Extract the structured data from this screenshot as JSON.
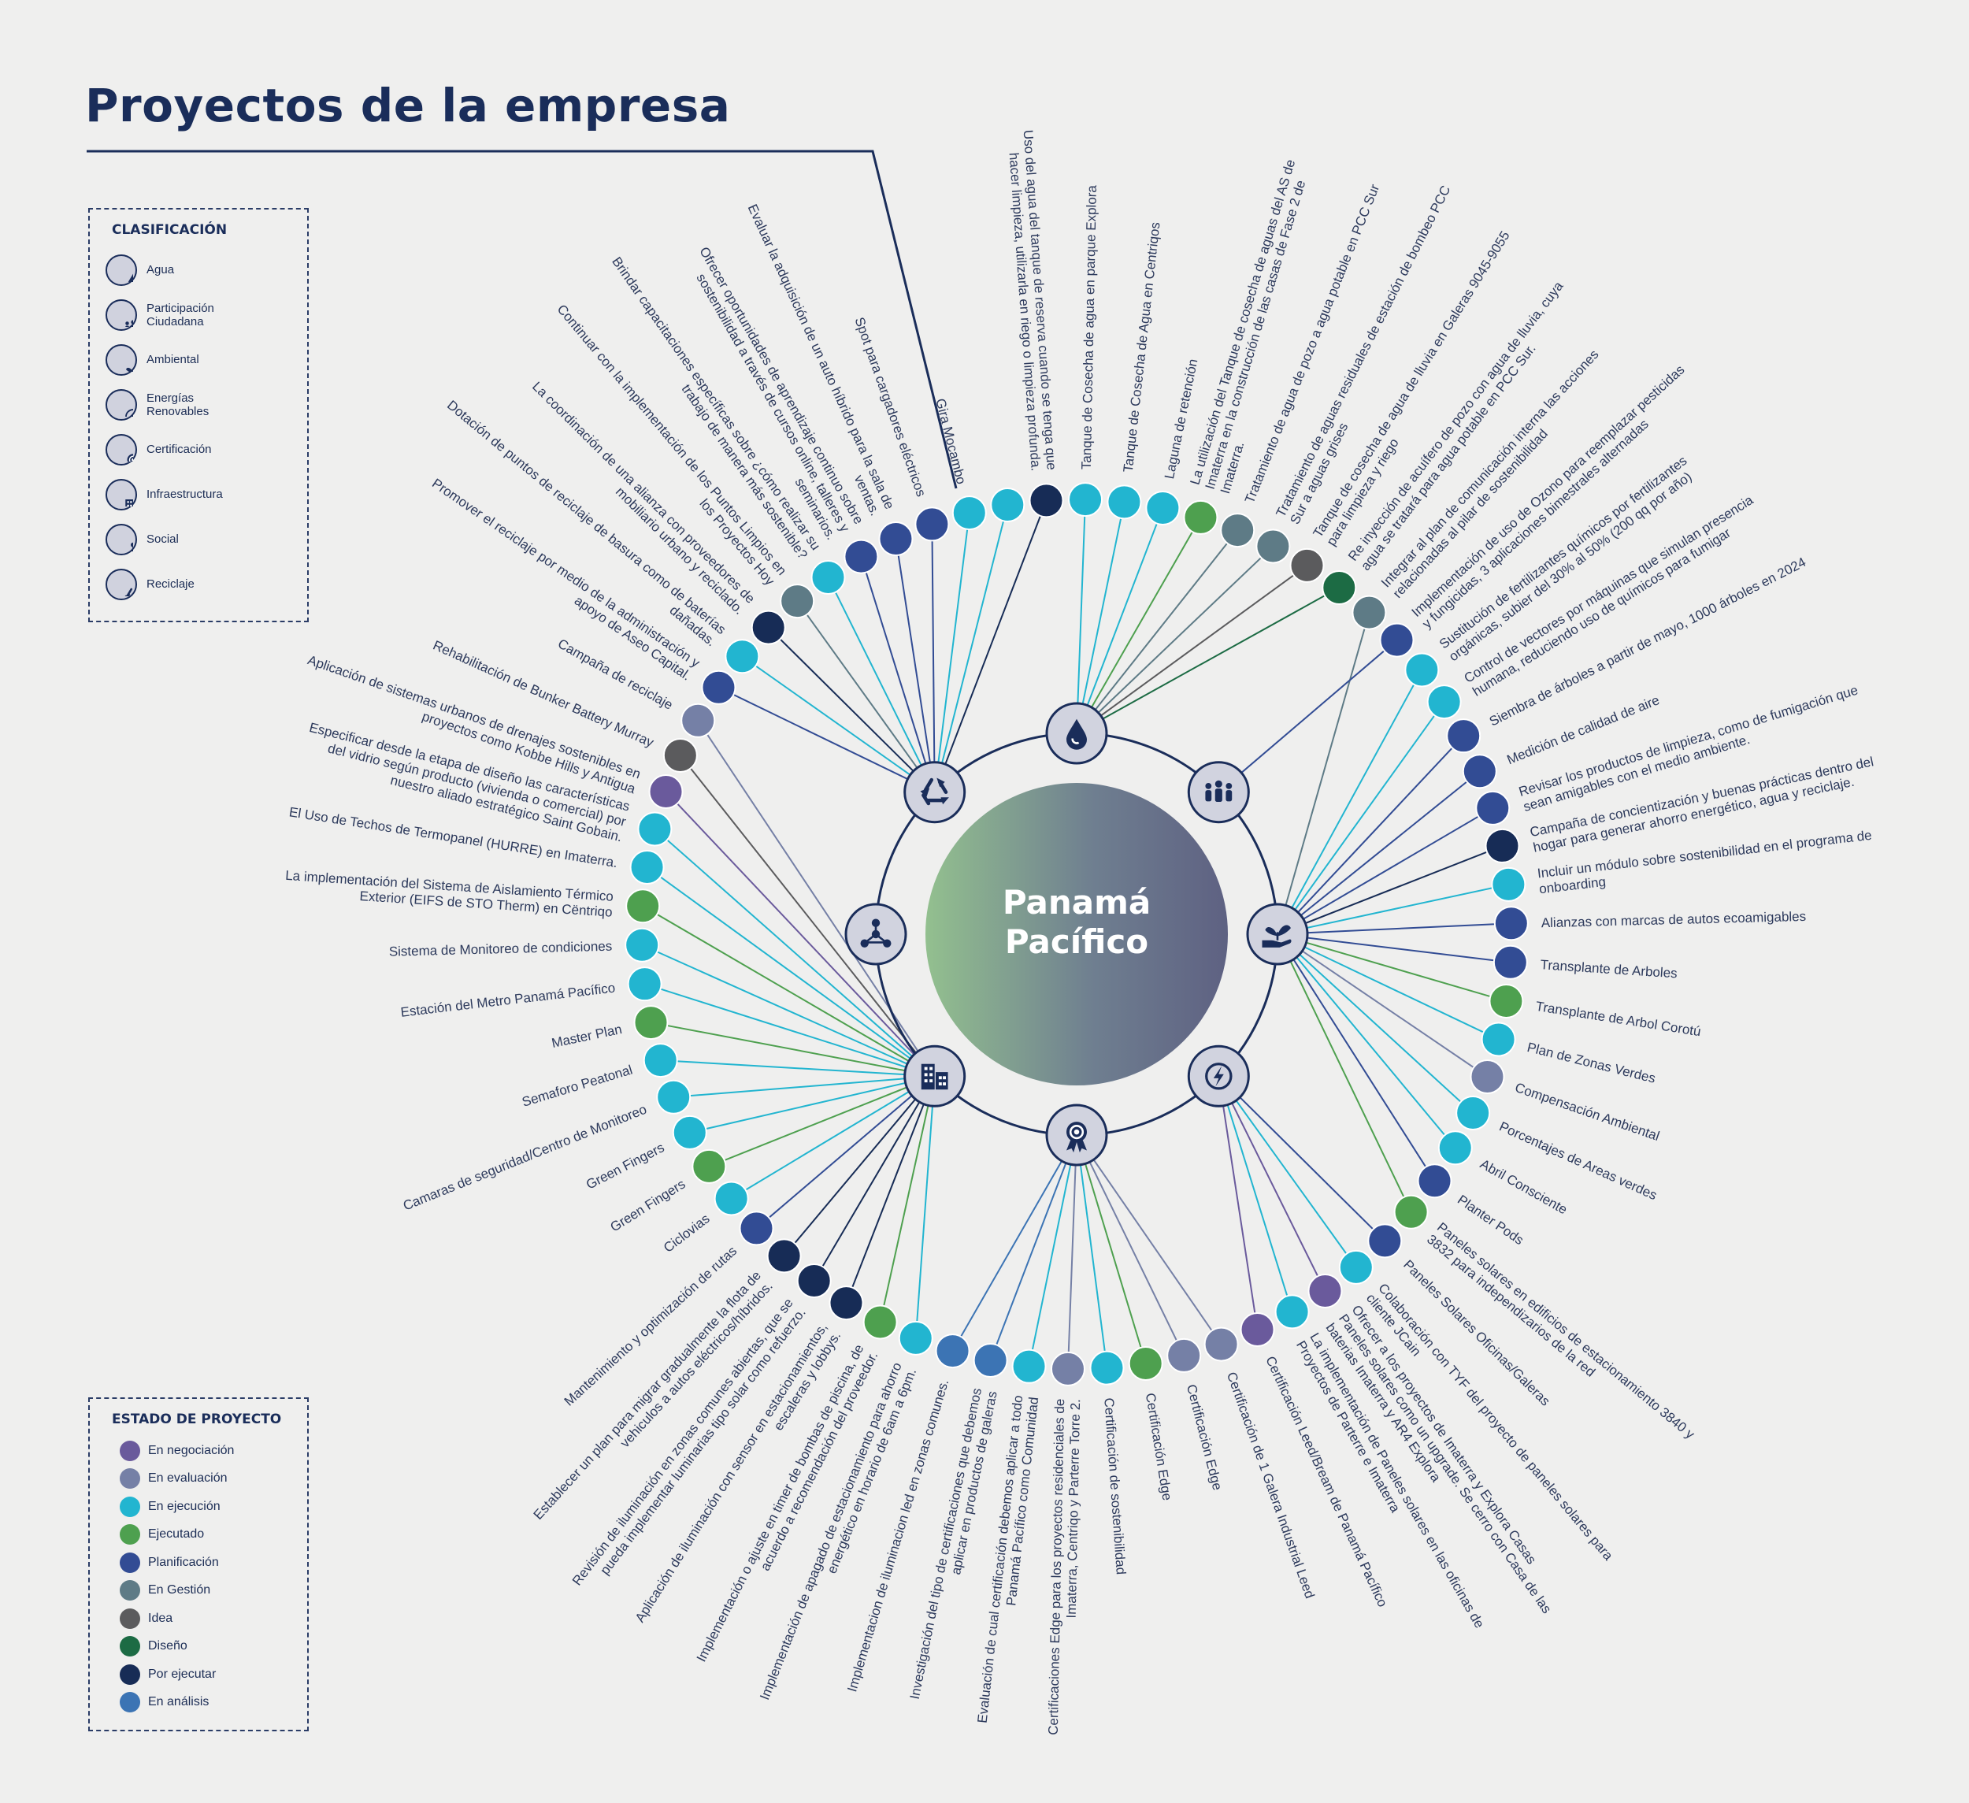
{
  "title": "Proyectos de la empresa",
  "center": {
    "line1": "Panamá",
    "line2": "Pacífico"
  },
  "classification": {
    "heading": "CLASIFICACIÓN",
    "items": [
      {
        "label": "Agua",
        "icon": "water-drop-icon"
      },
      {
        "label": "Participación\nCiudadana",
        "icon": "people-group-icon"
      },
      {
        "label": "Ambiental",
        "icon": "hand-plant-icon"
      },
      {
        "label": "Energías\nRenovables",
        "icon": "lightning-icon"
      },
      {
        "label": "Certificación",
        "icon": "award-badge-icon"
      },
      {
        "label": "Infraestructura",
        "icon": "building-icon"
      },
      {
        "label": "Social",
        "icon": "network-icon"
      },
      {
        "label": "Reciclaje",
        "icon": "recycle-icon"
      }
    ]
  },
  "status": {
    "heading": "ESTADO DE PROYECTO",
    "items": [
      {
        "label": "En negociación",
        "color": "#6a5a9c"
      },
      {
        "label": "En evaluación",
        "color": "#7580a6"
      },
      {
        "label": "En ejecución",
        "color": "#22b5d0"
      },
      {
        "label": "Ejecutado",
        "color": "#4ea04f"
      },
      {
        "label": "Planificación",
        "color": "#324c94"
      },
      {
        "label": "En Gestión",
        "color": "#5e7b86"
      },
      {
        "label": "Idea",
        "color": "#5b5b5d"
      },
      {
        "label": "Diseño",
        "color": "#1c6b44"
      },
      {
        "label": "Por ejecutar",
        "color": "#172c56"
      },
      {
        "label": "En análisis",
        "color": "#3c74b4"
      }
    ]
  },
  "hubs": [
    {
      "name": "agua",
      "icon": "water-drop-icon"
    },
    {
      "name": "participacion",
      "icon": "people-group-icon"
    },
    {
      "name": "ambiental",
      "icon": "hand-plant-icon"
    },
    {
      "name": "energias",
      "icon": "lightning-icon"
    },
    {
      "name": "certificacion",
      "icon": "award-badge-icon"
    },
    {
      "name": "infraestructura",
      "icon": "building-icon"
    },
    {
      "name": "social",
      "icon": "network-icon"
    },
    {
      "name": "reciclaje",
      "icon": "recycle-icon"
    }
  ],
  "projects": [
    {
      "text": "Uso del agua del tanque de reserva cuando se tenga que hacer limpieza, utilizarla en riego o limpieza profunda.",
      "status": "Por ejecutar",
      "hub": "reciclaje"
    },
    {
      "text": "Tanque de Cosecha de agua en parque Explora",
      "status": "En ejecución",
      "hub": "agua"
    },
    {
      "text": "Tanque de Cosecha de Agua en Centriqos",
      "status": "En ejecución",
      "hub": "agua"
    },
    {
      "text": "Laguna de retención",
      "status": "En ejecución",
      "hub": "agua"
    },
    {
      "text": "La utilización del Tanque de cosecha de aguas del AS de Imaterra en la construcción de las casas de Fase 2 de Imaterra.",
      "status": "Ejecutado",
      "hub": "agua"
    },
    {
      "text": "Tratamiento de agua de pozo a agua potable en PCC Sur",
      "status": "En Gestión",
      "hub": "agua"
    },
    {
      "text": "Tratamiento de aguas residuales de estación de bombeo PCC Sur a aguas grises",
      "status": "En Gestión",
      "hub": "agua"
    },
    {
      "text": "Tanque de cosecha de agua de lluvia en Galeras 9045-9055 para limpieza y riego",
      "status": "Idea",
      "hub": "agua"
    },
    {
      "text": "Re inyección de acuífero de pozo con agua de lluvia, cuya agua se tratará para agua potable en PCC Sur.",
      "status": "Diseño",
      "hub": "agua"
    },
    {
      "text": "Integrar al plan de comunicación interna las acciones relacionadas al pilar de sostenibilidad",
      "status": "En Gestión",
      "hub": "ambiental"
    },
    {
      "text": "Implementación de uso de Ozono para reemplazar pesticidas y fungicidas, 3 aplicaciones bimestrales alternadas",
      "status": "Planificación",
      "hub": "participacion"
    },
    {
      "text": "Sustitución de fertilizantes químicos por fertilizantes orgánicas, subier del 30% al 50% (200 qq por año)",
      "status": "En ejecución",
      "hub": "ambiental"
    },
    {
      "text": "Control de vectores por máquinas que simulan presencia humana, reduciendo uso de químicos para fumigar",
      "status": "En ejecución",
      "hub": "ambiental"
    },
    {
      "text": "Siembra de árboles a partir de mayo, 1000 árboles en 2024",
      "status": "Planificación",
      "hub": "ambiental"
    },
    {
      "text": "Medición de calidad de aire",
      "status": "Planificación",
      "hub": "ambiental"
    },
    {
      "text": "Revisar los productos de limpieza, como de fumigación que sean amigables con el medio ambiente.",
      "status": "Planificación",
      "hub": "ambiental"
    },
    {
      "text": "Campaña de concientización y buenas prácticas dentro del hogar para generar ahorro energético, agua y reciclaje.",
      "status": "Por ejecutar",
      "hub": "ambiental"
    },
    {
      "text": "Incluir un módulo sobre sostenibilidad en el programa de onboarding",
      "status": "En ejecución",
      "hub": "ambiental"
    },
    {
      "text": "Alianzas con marcas de autos ecoamigables",
      "status": "Planificación",
      "hub": "ambiental"
    },
    {
      "text": "Transplante de Arboles",
      "status": "Planificación",
      "hub": "ambiental"
    },
    {
      "text": "Transplante de Arbol Corotú",
      "status": "Ejecutado",
      "hub": "ambiental"
    },
    {
      "text": "Plan de Zonas Verdes",
      "status": "En ejecución",
      "hub": "ambiental"
    },
    {
      "text": "Compensación Ambiental",
      "status": "En evaluación",
      "hub": "ambiental"
    },
    {
      "text": "Porcentajes de Areas verdes",
      "status": "En ejecución",
      "hub": "ambiental"
    },
    {
      "text": "Abril Consciente",
      "status": "En ejecución",
      "hub": "ambiental"
    },
    {
      "text": "Planter Pods",
      "status": "Planificación",
      "hub": "ambiental"
    },
    {
      "text": "Paneles solares en edificios de estacionamiento 3840 y 3832 para independizarios de la red",
      "status": "Ejecutado",
      "hub": "ambiental"
    },
    {
      "text": "Paneles Solares Oficinas/Galeras",
      "status": "Planificación",
      "hub": "energias"
    },
    {
      "text": "Colaboración con TYF del proyecto de paneles solares para cliente JCain",
      "status": "En ejecución",
      "hub": "energias"
    },
    {
      "text": "Ofrecer a los proyectos de Imaterra y Explora Casas Paneles solares como un upgrade. Se cerro con Casa de las baterias Imaterra y AR4 Explora",
      "status": "En negociación",
      "hub": "energias"
    },
    {
      "text": "La implementación de Paneles solares en las oficinas de Proyectos de Parterre e Imaterra",
      "status": "En ejecución",
      "hub": "energias"
    },
    {
      "text": "Certificación Leed/Bream de Panamá Pacífico",
      "status": "En negociación",
      "hub": "energias"
    },
    {
      "text": "Certificación de 1 Galera Industrial Leed",
      "status": "En evaluación",
      "hub": "certificacion"
    },
    {
      "text": "Certificación Edge",
      "status": "En evaluación",
      "hub": "certificacion"
    },
    {
      "text": "Certificación Edge",
      "status": "Ejecutado",
      "hub": "certificacion"
    },
    {
      "text": "Certificación de sostenibilidad",
      "status": "En ejecución",
      "hub": "certificacion"
    },
    {
      "text": "Certificaciones Edge para los proyectos residenciales de Imaterra, Centriqo y Parterre Torre 2.",
      "status": "En evaluación",
      "hub": "certificacion"
    },
    {
      "text": "Evaluación de cual certificación debemos aplicar a todo Panamá Pacífico como Comunidad",
      "status": "En ejecución",
      "hub": "certificacion"
    },
    {
      "text": "Investigación del tipo de certificaciones que debemos aplicar en productos de galeras",
      "status": "En análisis",
      "hub": "certificacion"
    },
    {
      "text": "Implementacion de iluminacion led en zonas comunes.",
      "status": "En análisis",
      "hub": "certificacion"
    },
    {
      "text": "Implementación de apagado de estacionamiento para ahorro energético en horario de 6am a 6pm.",
      "status": "En ejecución",
      "hub": "infraestructura"
    },
    {
      "text": "Implementación o ajuste en timer de bombas de piscina, de acuerdo a recomendación del proveedor.",
      "status": "Ejecutado",
      "hub": "infraestructura"
    },
    {
      "text": "Aplicación de iluminación con sensor en estacionamientos, escaleras y lobbys.",
      "status": "Por ejecutar",
      "hub": "infraestructura"
    },
    {
      "text": "Revisión de iluminación en zonas comunes abiertas, que se pueda implementar luminarias tipo solar como refuerzo.",
      "status": "Por ejecutar",
      "hub": "infraestructura"
    },
    {
      "text": "Establecer un plan para migrar gradualmente la flota de vehiculos a autos eléctricos/híbridos.",
      "status": "Por ejecutar",
      "hub": "infraestructura"
    },
    {
      "text": "Mantenimiento y optimización de rutas",
      "status": "Planificación",
      "hub": "infraestructura"
    },
    {
      "text": "Ciclovias",
      "status": "En ejecución",
      "hub": "infraestructura"
    },
    {
      "text": "Green Fingers",
      "status": "Ejecutado",
      "hub": "infraestructura"
    },
    {
      "text": "Green Fingers",
      "status": "En ejecución",
      "hub": "infraestructura"
    },
    {
      "text": "Camaras de seguridad/Centro de Monitoreo",
      "status": "En ejecución",
      "hub": "infraestructura"
    },
    {
      "text": "Semaforo Peatonal",
      "status": "En ejecución",
      "hub": "infraestructura"
    },
    {
      "text": "Master Plan",
      "status": "Ejecutado",
      "hub": "infraestructura"
    },
    {
      "text": "Estación del Metro Panamá Pacífico",
      "status": "En ejecución",
      "hub": "infraestructura"
    },
    {
      "text": "Sistema de Monitoreo de condiciones",
      "status": "En ejecución",
      "hub": "infraestructura"
    },
    {
      "text": "La implementación del Sistema de Aislamiento Térmico Exterior (EIFS  de STO Therm) en Cëntriqo",
      "status": "Ejecutado",
      "hub": "infraestructura"
    },
    {
      "text": "El Uso de Techos de Termopanel (HURRE) en Imaterra.",
      "status": "En ejecución",
      "hub": "infraestructura"
    },
    {
      "text": "Especificar desde la etapa de diseño las características del vidrio según producto (vivienda o comercial) por nuestro aliado estratégico Saint Gobain.",
      "status": "En ejecución",
      "hub": "infraestructura"
    },
    {
      "text": "Aplicación de sistemas urbanos de drenajes sostenibles en proyectos como Kobbe Hills y Antigua",
      "status": "En negociación",
      "hub": "infraestructura"
    },
    {
      "text": "Rehabilitación de Bunker Battery Murray",
      "status": "Idea",
      "hub": "infraestructura"
    },
    {
      "text": "Campaña de reciclaje",
      "status": "En evaluación",
      "hub": "infraestructura"
    },
    {
      "text": "Promover el reciclaje por medio de la administración y apoyo de Aseo Capital.",
      "status": "Planificación",
      "hub": "reciclaje"
    },
    {
      "text": "Dotación de puntos de reciclaje de basura como de baterías dañadas.",
      "status": "En ejecución",
      "hub": "reciclaje"
    },
    {
      "text": "La coordinación de una alianza con proveedores de mobiliario urbano y reciclado.",
      "status": "Por ejecutar",
      "hub": "reciclaje"
    },
    {
      "text": "Continuar con la implementación de los Puntos Limpios en los Proyectos Hoy",
      "status": "En Gestión",
      "hub": "reciclaje"
    },
    {
      "text": "Brindar capacitaciones específicas sobre ¿cómo realizar su trabajo de manera más sostenible?",
      "status": "En ejecución",
      "hub": "reciclaje"
    },
    {
      "text": "Ofrecer oportunidades de aprendizaje continuo sobre sostenibilidad a través de cursos online, talleres y seminarios.",
      "status": "Planificación",
      "hub": "reciclaje"
    },
    {
      "text": "Evaluar la adquisición de un auto híbrido para la sala de ventas.",
      "status": "Planificación",
      "hub": "reciclaje"
    },
    {
      "text": "Spot para cargadores eléctricos",
      "status": "Planificación",
      "hub": "reciclaje"
    },
    {
      "text": "Gira Mocambo",
      "status": "En ejecución",
      "hub": "reciclaje"
    },
    {
      "text": "",
      "status": "En ejecución",
      "hub": "reciclaje"
    }
  ]
}
